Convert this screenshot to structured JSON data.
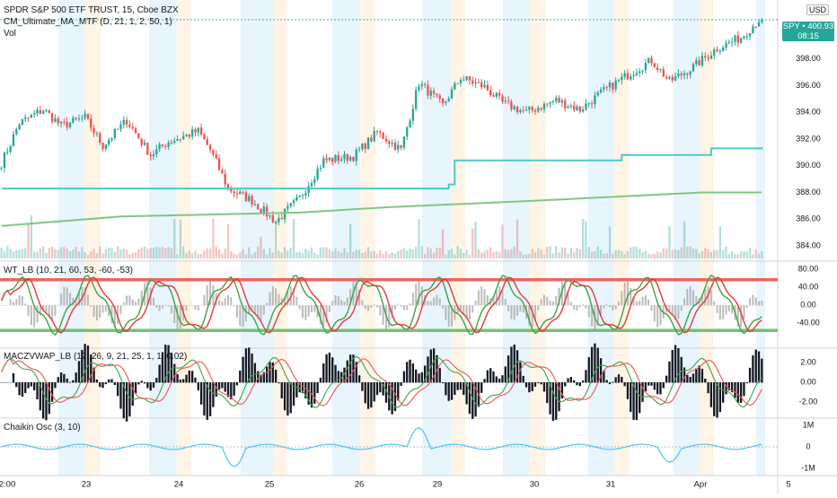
{
  "header": {
    "symbol_line": "SPDR S&P 500 ETF TRUST, 15, Cboe BZX",
    "indicator_line": "CM_Ultimate_MA_MTF (D, 21, 1, 2, 50, 1)",
    "vol_label": "Vol",
    "currency": "USD"
  },
  "last_price": {
    "ticker": "SPY",
    "price": "400.93",
    "countdown": "08:15",
    "color": "#26a69a"
  },
  "colors": {
    "up": "#26a69a",
    "down": "#ef5350",
    "ma_fast": "#4dc9c4",
    "ma_slow": "#81c784",
    "session_blue": "#e3f2fd",
    "session_orange": "#fff3e0"
  },
  "panes": {
    "wt": {
      "label": "WT_LB (10, 21, 60, 53, -60, -53)",
      "ticks": [
        "80.00",
        "40.00",
        "0.00",
        "-40.00"
      ]
    },
    "macd": {
      "label": "MACZVWAP_LB (12, 26, 9, 21, 25, 1, 1, 0.02)",
      "ticks": [
        "2.00",
        "0.00",
        "-2.00"
      ]
    },
    "chaikin": {
      "label": "Chaikin Osc (3, 10)",
      "ticks": [
        "1M",
        "0",
        "-1M"
      ]
    }
  },
  "time_axis": [
    "2:00",
    "23",
    "24",
    "25",
    "26",
    "29",
    "30",
    "31",
    "Apr",
    "5"
  ],
  "chart_data": {
    "type": "candlestick",
    "y_ticks": [
      384,
      386,
      388,
      390,
      392,
      394,
      396,
      398,
      400
    ],
    "ylim": [
      383,
      401.8
    ],
    "price_anchors": [
      [
        0,
        390.2
      ],
      [
        6,
        393.2
      ],
      [
        14,
        394.2
      ],
      [
        20,
        393.0
      ],
      [
        28,
        393.6
      ],
      [
        34,
        391.5
      ],
      [
        42,
        393.4
      ],
      [
        50,
        390.8
      ],
      [
        56,
        391.8
      ],
      [
        66,
        392.6
      ],
      [
        70,
        391.2
      ],
      [
        76,
        388.3
      ],
      [
        84,
        387.4
      ],
      [
        92,
        385.8
      ],
      [
        100,
        387.6
      ],
      [
        108,
        390.4
      ],
      [
        118,
        390.7
      ],
      [
        126,
        392.5
      ],
      [
        134,
        391.2
      ],
      [
        140,
        396.2
      ],
      [
        148,
        394.5
      ],
      [
        154,
        396.6
      ],
      [
        162,
        395.9
      ],
      [
        168,
        394.7
      ],
      [
        176,
        394.0
      ],
      [
        186,
        394.9
      ],
      [
        194,
        394.2
      ],
      [
        202,
        395.6
      ],
      [
        210,
        396.8
      ],
      [
        218,
        397.9
      ],
      [
        224,
        396.3
      ],
      [
        232,
        397.4
      ],
      [
        240,
        398.8
      ],
      [
        248,
        399.6
      ],
      [
        254,
        400.93
      ]
    ],
    "series": [
      {
        "name": "",
        "kind": "step",
        "color": "#4dc9c4",
        "steps": [
          [
            0,
            388.3
          ],
          [
            150,
            388.6
          ],
          [
            152,
            390.4
          ],
          [
            208,
            390.8
          ],
          [
            238,
            391.3
          ],
          [
            255,
            391.4
          ]
        ]
      },
      {
        "name": "",
        "kind": "line",
        "color": "#81c784",
        "steps": [
          [
            0,
            385.5
          ],
          [
            40,
            386.2
          ],
          [
            100,
            386.5
          ],
          [
            130,
            386.9
          ],
          [
            180,
            387.4
          ],
          [
            235,
            388.0
          ],
          [
            255,
            388.0
          ]
        ]
      }
    ]
  }
}
